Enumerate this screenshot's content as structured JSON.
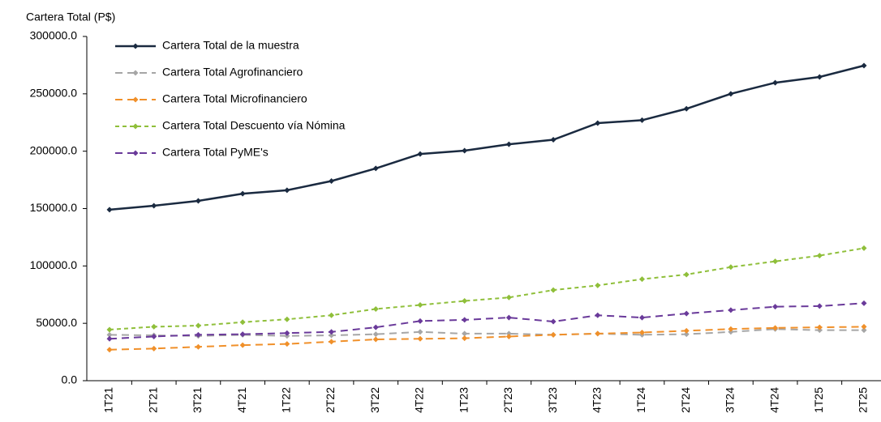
{
  "chart_data": {
    "type": "line",
    "y_label": "Cartera Total (P$)",
    "categories": [
      "1T21",
      "2T21",
      "3T21",
      "4T21",
      "1T22",
      "2T22",
      "3T22",
      "4T22",
      "1T23",
      "2T23",
      "3T23",
      "4T23",
      "1T24",
      "2T24",
      "3T24",
      "4T24",
      "1T25",
      "2T25"
    ],
    "ylim": [
      0,
      300000
    ],
    "yticks": [
      {
        "value": 0,
        "label": "0.0"
      },
      {
        "value": 50000,
        "label": "50000.0"
      },
      {
        "value": 100000,
        "label": "100000.0"
      },
      {
        "value": 150000,
        "label": "150000.0"
      },
      {
        "value": 200000,
        "label": "200000.0"
      },
      {
        "value": 250000,
        "label": "250000.0"
      },
      {
        "value": 300000,
        "label": "300000.0"
      }
    ],
    "grid": false,
    "legend": "top-left",
    "series": [
      {
        "name": "Cartera Total de la muestra",
        "color": "#1a2a40",
        "line_style": "solid",
        "values": [
          149000,
          152500,
          156700,
          163000,
          166000,
          174000,
          185000,
          197600,
          200500,
          206000,
          210000,
          224500,
          227000,
          237000,
          250000,
          259700,
          264700,
          274600
        ]
      },
      {
        "name": "Cartera Total Agrofinanciero",
        "color": "#a6a6a6",
        "line_style": "dashed",
        "values": [
          40000,
          39500,
          39000,
          40000,
          39000,
          39500,
          40500,
          42500,
          41000,
          41000,
          40000,
          41000,
          40000,
          40500,
          42500,
          45000,
          44000,
          44000
        ]
      },
      {
        "name": "Cartera Total Microfinanciero",
        "color": "#f0902a",
        "line_style": "dashed",
        "values": [
          27000,
          28000,
          29500,
          31000,
          32000,
          34000,
          36000,
          36500,
          37000,
          38500,
          40000,
          41000,
          42000,
          43500,
          45000,
          46000,
          46500,
          47000
        ]
      },
      {
        "name": "Cartera Total Descuento vía Nómina",
        "color": "#8fbf3a",
        "line_style": "dotted",
        "values": [
          44500,
          47000,
          48000,
          51000,
          53500,
          57000,
          62500,
          66000,
          69500,
          72500,
          79000,
          83000,
          88500,
          92500,
          99000,
          104000,
          109000,
          115500
        ]
      },
      {
        "name": "Cartera Total PyME's",
        "color": "#6a3a9a",
        "line_style": "dashed",
        "values": [
          36500,
          38500,
          40000,
          40500,
          41500,
          42500,
          46500,
          52000,
          53000,
          55000,
          51500,
          57000,
          55000,
          58500,
          61500,
          64500,
          65000,
          67500
        ]
      }
    ]
  }
}
